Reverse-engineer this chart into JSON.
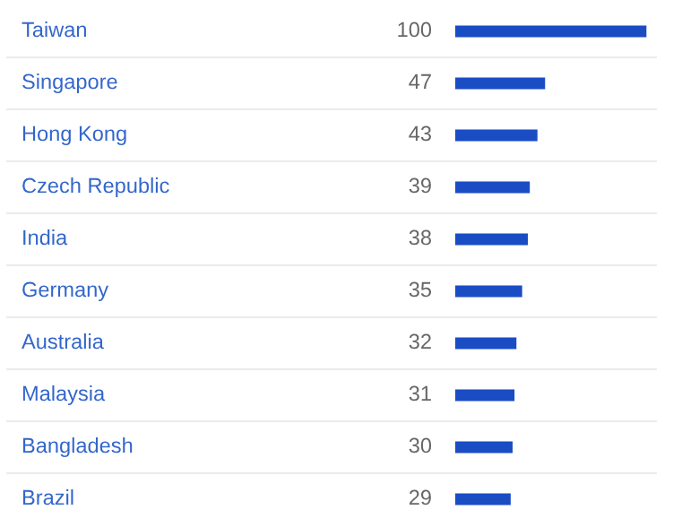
{
  "chart_data": {
    "type": "bar",
    "orientation": "horizontal",
    "categories": [
      "Taiwan",
      "Singapore",
      "Hong Kong",
      "Czech Republic",
      "India",
      "Germany",
      "Australia",
      "Malaysia",
      "Bangladesh",
      "Brazil"
    ],
    "values": [
      100,
      47,
      43,
      39,
      38,
      35,
      32,
      31,
      30,
      29
    ],
    "color": "#1a4cc4",
    "data_labels": true
  }
}
